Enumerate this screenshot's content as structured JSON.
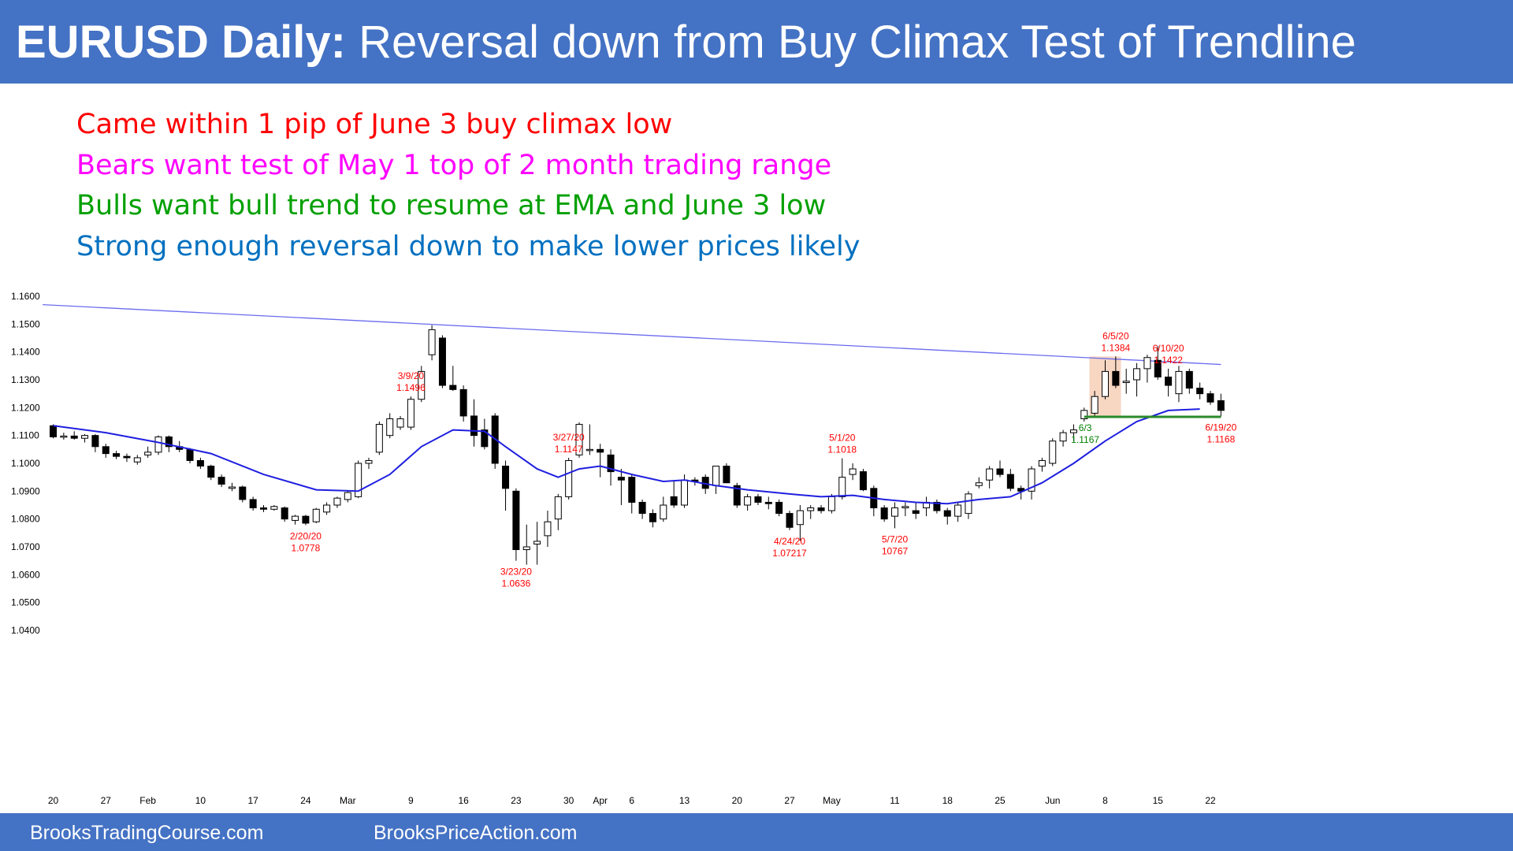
{
  "header": {
    "title_bold": "EURUSD Daily:",
    "title_rest": "Reversal down from Buy Climax Test of Trendline"
  },
  "notes": [
    {
      "text": "Came within 1 pip of June 3 buy climax low",
      "color": "#ff0000"
    },
    {
      "text": "Bears want test of May 1 top of 2 month trading range",
      "color": "#ff00ff"
    },
    {
      "text": "Bulls want bull trend to resume at EMA and June 3 low",
      "color": "#00a000"
    },
    {
      "text": "Strong enough reversal down to make lower prices likely",
      "color": "#0070c0"
    }
  ],
  "footer": {
    "left": "BrooksTradingCourse.com",
    "right": "BrooksPriceAction.com"
  },
  "chart_data": {
    "type": "candlestick",
    "ylim": [
      1.036,
      1.16
    ],
    "y_ticks": [
      "1.1600",
      "1.1500",
      "1.1400",
      "1.1300",
      "1.1200",
      "1.1100",
      "1.1000",
      "1.0900",
      "1.0800",
      "1.0700",
      "1.0600",
      "1.0500",
      "1.0400"
    ],
    "x_ticks": [
      {
        "i": 0,
        "label": "20"
      },
      {
        "i": 5,
        "label": "27"
      },
      {
        "i": 9,
        "label": "Feb"
      },
      {
        "i": 14,
        "label": "10"
      },
      {
        "i": 19,
        "label": "17"
      },
      {
        "i": 24,
        "label": "24"
      },
      {
        "i": 28,
        "label": "Mar"
      },
      {
        "i": 34,
        "label": "9"
      },
      {
        "i": 39,
        "label": "16"
      },
      {
        "i": 44,
        "label": "23"
      },
      {
        "i": 49,
        "label": "30"
      },
      {
        "i": 52,
        "label": "Apr"
      },
      {
        "i": 55,
        "label": "6"
      },
      {
        "i": 60,
        "label": "13"
      },
      {
        "i": 65,
        "label": "20"
      },
      {
        "i": 70,
        "label": "27"
      },
      {
        "i": 74,
        "label": "May"
      },
      {
        "i": 80,
        "label": "11"
      },
      {
        "i": 85,
        "label": "18"
      },
      {
        "i": 90,
        "label": "25"
      },
      {
        "i": 95,
        "label": "Jun"
      },
      {
        "i": 100,
        "label": "8"
      },
      {
        "i": 105,
        "label": "15"
      },
      {
        "i": 110,
        "label": "22"
      }
    ],
    "candles": [
      [
        1.1135,
        1.114,
        1.109,
        1.1095
      ],
      [
        1.1095,
        1.111,
        1.1085,
        1.1098
      ],
      [
        1.1098,
        1.1115,
        1.1085,
        1.109
      ],
      [
        1.109,
        1.1105,
        1.1075,
        1.11
      ],
      [
        1.11,
        1.1105,
        1.104,
        1.106
      ],
      [
        1.106,
        1.107,
        1.102,
        1.1035
      ],
      [
        1.1035,
        1.1045,
        1.1015,
        1.1025
      ],
      [
        1.1025,
        1.1035,
        1.1005,
        1.102
      ],
      [
        1.1005,
        1.103,
        1.0995,
        1.102
      ],
      [
        1.103,
        1.106,
        1.102,
        1.104
      ],
      [
        1.104,
        1.11,
        1.103,
        1.1095
      ],
      [
        1.1095,
        1.11,
        1.104,
        1.106
      ],
      [
        1.106,
        1.108,
        1.104,
        1.105
      ],
      [
        1.105,
        1.1055,
        1.1,
        1.101
      ],
      [
        1.101,
        1.102,
        1.098,
        1.099
      ],
      [
        1.099,
        1.0995,
        1.094,
        1.095
      ],
      [
        1.095,
        1.096,
        1.0915,
        1.0925
      ],
      [
        1.091,
        1.093,
        1.09,
        1.0915
      ],
      [
        1.0915,
        1.092,
        1.086,
        1.087
      ],
      [
        1.087,
        1.088,
        1.083,
        1.084
      ],
      [
        1.084,
        1.085,
        1.0825,
        1.0835
      ],
      [
        1.0835,
        1.085,
        1.083,
        1.0845
      ],
      [
        1.084,
        1.0845,
        1.079,
        1.08
      ],
      [
        1.0795,
        1.0815,
        1.078,
        1.081
      ],
      [
        1.081,
        1.0815,
        1.0778,
        1.0785
      ],
      [
        1.079,
        1.084,
        1.0785,
        1.0835
      ],
      [
        1.0825,
        1.086,
        1.0815,
        1.085
      ],
      [
        1.085,
        1.088,
        1.084,
        1.0875
      ],
      [
        1.087,
        1.09,
        1.086,
        1.0895
      ],
      [
        1.088,
        1.101,
        1.0875,
        1.1
      ],
      [
        1.1,
        1.102,
        1.098,
        1.101
      ],
      [
        1.104,
        1.115,
        1.103,
        1.114
      ],
      [
        1.11,
        1.118,
        1.109,
        1.116
      ],
      [
        1.113,
        1.117,
        1.112,
        1.116
      ],
      [
        1.113,
        1.124,
        1.112,
        1.123
      ],
      [
        1.123,
        1.135,
        1.122,
        1.133
      ],
      [
        1.139,
        1.1496,
        1.137,
        1.148
      ],
      [
        1.145,
        1.146,
        1.127,
        1.128
      ],
      [
        1.128,
        1.135,
        1.126,
        1.1265
      ],
      [
        1.1265,
        1.128,
        1.115,
        1.117
      ],
      [
        1.117,
        1.123,
        1.106,
        1.11
      ],
      [
        1.112,
        1.116,
        1.105,
        1.106
      ],
      [
        1.117,
        1.118,
        1.098,
        1.1
      ],
      [
        1.099,
        1.101,
        1.083,
        1.091
      ],
      [
        1.09,
        1.091,
        1.065,
        1.069
      ],
      [
        1.069,
        1.078,
        1.0636,
        1.07
      ],
      [
        1.071,
        1.079,
        1.0636,
        1.072
      ],
      [
        1.074,
        1.083,
        1.07,
        1.079
      ],
      [
        1.08,
        1.089,
        1.076,
        1.088
      ],
      [
        1.088,
        1.102,
        1.087,
        1.101
      ],
      [
        1.103,
        1.1147,
        1.102,
        1.114
      ],
      [
        1.105,
        1.114,
        1.103,
        1.105
      ],
      [
        1.105,
        1.107,
        1.095,
        1.104
      ],
      [
        1.103,
        1.105,
        1.092,
        1.097
      ],
      [
        1.095,
        1.098,
        1.085,
        1.094
      ],
      [
        1.095,
        1.096,
        1.082,
        1.086
      ],
      [
        1.086,
        1.087,
        1.08,
        1.082
      ],
      [
        1.082,
        1.0835,
        1.077,
        1.079
      ],
      [
        1.08,
        1.088,
        1.079,
        1.085
      ],
      [
        1.088,
        1.094,
        1.084,
        1.085
      ],
      [
        1.085,
        1.096,
        1.084,
        1.094
      ],
      [
        1.094,
        1.095,
        1.092,
        1.0935
      ],
      [
        1.095,
        1.096,
        1.089,
        1.091
      ],
      [
        1.092,
        1.099,
        1.089,
        1.099
      ],
      [
        1.099,
        1.1,
        1.093,
        1.093
      ],
      [
        1.092,
        1.093,
        1.084,
        1.085
      ],
      [
        1.085,
        1.089,
        1.083,
        1.088
      ],
      [
        1.088,
        1.089,
        1.085,
        1.086
      ],
      [
        1.086,
        1.088,
        1.0835,
        1.0855
      ],
      [
        1.086,
        1.087,
        1.081,
        1.082
      ],
      [
        1.082,
        1.083,
        1.076,
        1.077
      ],
      [
        1.078,
        1.085,
        1.0722,
        1.083
      ],
      [
        1.083,
        1.085,
        1.08,
        1.084
      ],
      [
        1.084,
        1.085,
        1.082,
        1.083
      ],
      [
        1.083,
        1.089,
        1.082,
        1.088
      ],
      [
        1.088,
        1.1018,
        1.087,
        1.095
      ],
      [
        1.096,
        1.1,
        1.094,
        1.098
      ],
      [
        1.097,
        1.098,
        1.09,
        1.0905
      ],
      [
        1.091,
        1.092,
        1.081,
        1.084
      ],
      [
        1.084,
        1.085,
        1.079,
        1.08
      ],
      [
        1.081,
        1.086,
        1.0767,
        1.084
      ],
      [
        1.084,
        1.086,
        1.081,
        1.0845
      ],
      [
        1.083,
        1.086,
        1.08,
        1.082
      ],
      [
        1.084,
        1.088,
        1.081,
        1.086
      ],
      [
        1.086,
        1.087,
        1.082,
        1.083
      ],
      [
        1.083,
        1.084,
        1.078,
        1.081
      ],
      [
        1.081,
        1.086,
        1.079,
        1.085
      ],
      [
        1.082,
        1.09,
        1.08,
        1.089
      ],
      [
        1.092,
        1.095,
        1.091,
        1.093
      ],
      [
        1.094,
        1.099,
        1.091,
        1.098
      ],
      [
        1.098,
        1.101,
        1.095,
        1.096
      ],
      [
        1.096,
        1.098,
        1.09,
        1.091
      ],
      [
        1.091,
        1.092,
        1.087,
        1.09
      ],
      [
        1.09,
        1.099,
        1.087,
        1.098
      ],
      [
        1.099,
        1.102,
        1.097,
        1.101
      ],
      [
        1.1,
        1.109,
        1.099,
        1.108
      ],
      [
        1.108,
        1.112,
        1.106,
        1.111
      ],
      [
        1.111,
        1.114,
        1.108,
        1.112
      ],
      [
        1.116,
        1.12,
        1.115,
        1.119
      ],
      [
        1.118,
        1.126,
        1.1167,
        1.124
      ],
      [
        1.124,
        1.137,
        1.123,
        1.133
      ],
      [
        1.133,
        1.1384,
        1.127,
        1.128
      ],
      [
        1.129,
        1.134,
        1.125,
        1.1295
      ],
      [
        1.13,
        1.136,
        1.124,
        1.134
      ],
      [
        1.134,
        1.139,
        1.129,
        1.138
      ],
      [
        1.137,
        1.1422,
        1.13,
        1.131
      ],
      [
        1.131,
        1.134,
        1.124,
        1.128
      ],
      [
        1.125,
        1.135,
        1.122,
        1.133
      ],
      [
        1.133,
        1.134,
        1.125,
        1.127
      ],
      [
        1.127,
        1.129,
        1.123,
        1.125
      ],
      [
        1.125,
        1.126,
        1.121,
        1.122
      ],
      [
        1.1225,
        1.125,
        1.1168,
        1.119
      ]
    ],
    "ema": [
      [
        0,
        1.1135
      ],
      [
        5,
        1.111
      ],
      [
        10,
        1.1075
      ],
      [
        15,
        1.1035
      ],
      [
        20,
        1.096
      ],
      [
        25,
        1.0905
      ],
      [
        29,
        1.09
      ],
      [
        32,
        1.096
      ],
      [
        35,
        1.106
      ],
      [
        38,
        1.112
      ],
      [
        41,
        1.1115
      ],
      [
        43,
        1.106
      ],
      [
        46,
        1.098
      ],
      [
        48,
        1.095
      ],
      [
        50,
        1.098
      ],
      [
        52,
        1.099
      ],
      [
        55,
        1.096
      ],
      [
        58,
        1.0935
      ],
      [
        60,
        1.094
      ],
      [
        63,
        1.092
      ],
      [
        66,
        1.0905
      ],
      [
        70,
        1.089
      ],
      [
        73,
        1.088
      ],
      [
        76,
        1.0885
      ],
      [
        79,
        1.087
      ],
      [
        82,
        1.086
      ],
      [
        85,
        1.0855
      ],
      [
        88,
        1.087
      ],
      [
        91,
        1.088
      ],
      [
        94,
        1.093
      ],
      [
        97,
        1.1
      ],
      [
        100,
        1.108
      ],
      [
        103,
        1.115
      ],
      [
        106,
        1.119
      ],
      [
        109,
        1.1195
      ]
    ],
    "trendline": {
      "start": [
        -1,
        1.157
      ],
      "end": [
        111,
        1.1355
      ]
    },
    "support_line": {
      "start": [
        98,
        1.1167
      ],
      "end": [
        111,
        1.1167
      ]
    },
    "climax_box": {
      "from": 98.5,
      "to": 101.5,
      "low": 1.1167,
      "high": 1.1384
    },
    "labels": [
      {
        "i": 34,
        "date": "3/9/20",
        "price": "1.1496",
        "pos": "above",
        "color": "#ff0000"
      },
      {
        "i": 24,
        "date": "2/20/20",
        "price": "1.0778",
        "pos": "below",
        "color": "#ff0000"
      },
      {
        "i": 44,
        "date": "3/23/20",
        "price": "1.0636",
        "pos": "below",
        "color": "#ff0000"
      },
      {
        "i": 49,
        "date": "3/27/20",
        "price": "1.1147",
        "pos": "above",
        "color": "#ff0000"
      },
      {
        "i": 70,
        "date": "4/24/20",
        "price": "1.07217",
        "pos": "below",
        "color": "#ff0000"
      },
      {
        "i": 75,
        "date": "5/1/20",
        "price": "1.1018",
        "pos": "above",
        "color": "#ff0000"
      },
      {
        "i": 80,
        "date": "5/7/20",
        "price": "10767",
        "pos": "below",
        "color": "#ff0000"
      },
      {
        "i": 99,
        "date": "6/3",
        "price": "1.1167",
        "pos": "below",
        "color": "#008000"
      },
      {
        "i": 101,
        "date": "6/5/20",
        "price": "1.1384",
        "pos": "above",
        "color": "#ff0000"
      },
      {
        "i": 106,
        "date": "6/10/20",
        "price": "1.1422",
        "pos": "above",
        "color": "#ff0000"
      },
      {
        "i": 111,
        "date": "6/19/20",
        "price": "1.1168",
        "pos": "below",
        "color": "#ff0000"
      }
    ],
    "colors": {
      "ema": "#1f1fe0",
      "trendline": "#6b6bf0",
      "support": "#2a8a2a",
      "box": "#f4c8ad"
    }
  }
}
